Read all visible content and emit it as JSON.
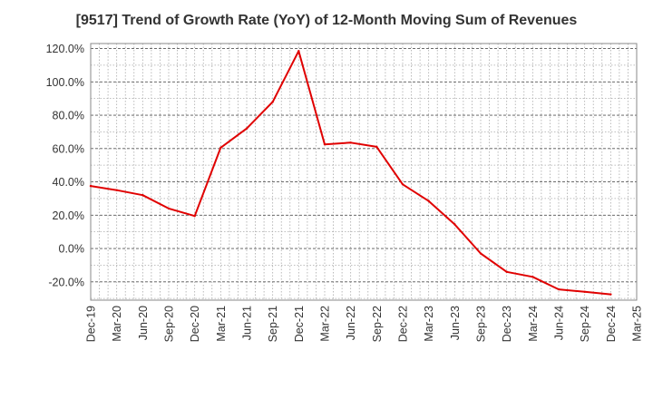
{
  "chart_data": {
    "type": "line",
    "title": "[9517]  Trend of Growth Rate (YoY) of 12-Month Moving Sum of Revenues",
    "xlabel": "",
    "ylabel": "",
    "x_tick_labels": [
      "Dec-19",
      "Mar-20",
      "Jun-20",
      "Sep-20",
      "Dec-20",
      "Mar-21",
      "Jun-21",
      "Sep-21",
      "Dec-21",
      "Mar-22",
      "Jun-22",
      "Sep-22",
      "Dec-22",
      "Mar-23",
      "Jun-23",
      "Sep-23",
      "Dec-23",
      "Mar-24",
      "Jun-24",
      "Sep-24",
      "Dec-24",
      "Mar-25"
    ],
    "y_tick_labels": [
      "120.0%",
      "100.0%",
      "80.0%",
      "60.0%",
      "40.0%",
      "20.0%",
      "0.0%",
      "-20.0%"
    ],
    "ylim": [
      -31.0,
      123.0
    ],
    "y_ticks": [
      120,
      100,
      80,
      60,
      40,
      20,
      0,
      -20
    ],
    "grid": true,
    "series": [
      {
        "color": "#e00000",
        "x": [
          0,
          1,
          2,
          3,
          4,
          5,
          6,
          7,
          8,
          9,
          10,
          11,
          12,
          13,
          14,
          15,
          16,
          17,
          18,
          19,
          20
        ],
        "values": [
          37.5,
          35.0,
          32.0,
          24.0,
          19.5,
          60.5,
          72.0,
          88.0,
          118.5,
          62.5,
          63.5,
          61.0,
          38.5,
          28.5,
          14.5,
          -3.0,
          -14.0,
          -17.0,
          -24.5,
          -26.0,
          -27.5
        ]
      }
    ]
  }
}
